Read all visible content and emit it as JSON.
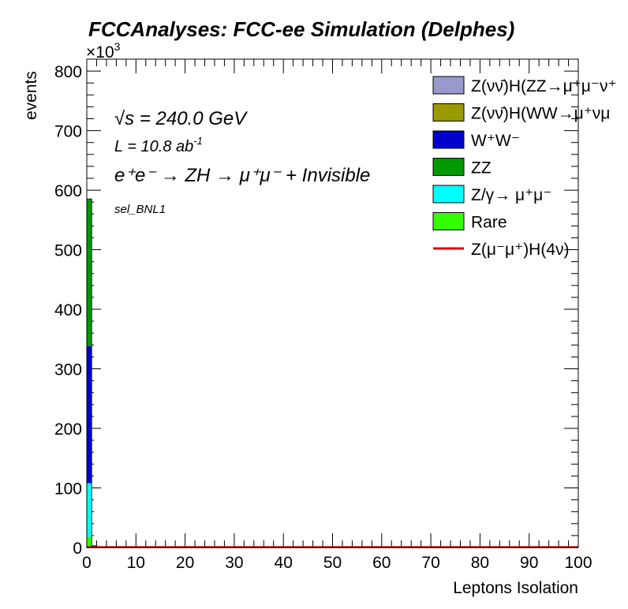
{
  "chart_data": {
    "type": "bar",
    "title": "FCCAnalyses: FCC-ee Simulation (Delphes)",
    "xlabel": "Leptons Isolation",
    "ylabel": "events",
    "y_multiplier": "×10",
    "y_multiplier_exp": "3",
    "xlim": [
      0,
      100
    ],
    "ylim": [
      0,
      820
    ],
    "x_ticks": [
      0,
      10,
      20,
      30,
      40,
      50,
      60,
      70,
      80,
      90,
      100
    ],
    "x_tick_labels": [
      "0",
      "10",
      "20",
      "30",
      "40",
      "50",
      "60",
      "70",
      "80",
      "90",
      "100"
    ],
    "y_ticks": [
      0,
      100,
      200,
      300,
      400,
      500,
      600,
      700,
      800
    ],
    "y_tick_labels": [
      "0",
      "100",
      "200",
      "300",
      "400",
      "500",
      "600",
      "700",
      "800"
    ],
    "bin_edges": [
      0,
      1,
      2,
      3
    ],
    "stack": [
      {
        "name": "Rare",
        "color": "#33ff00",
        "values": [
          18,
          0.5,
          0
        ]
      },
      {
        "name": "Z/γ→ μ⁺μ⁻",
        "color": "#00ffff",
        "values": [
          90,
          1.5,
          0.3
        ]
      },
      {
        "name": "W⁺W⁻",
        "color": "#0000cc",
        "values": [
          230,
          0.5,
          0
        ]
      },
      {
        "name": "ZZ",
        "color": "#009900",
        "values": [
          247,
          0.5,
          0
        ]
      },
      {
        "name": "Z(νν̄)H(WW→μ⁺νμ⁻ν̄)",
        "color": "#999900",
        "values": [
          0.2,
          0,
          0
        ]
      },
      {
        "name": "Z(νν̄)H(ZZ→μ⁺μ⁻ν⁺ν̄)",
        "color": "#9999cc",
        "values": [
          0.1,
          0,
          0
        ]
      }
    ],
    "signal": {
      "name": "Z(μ⁻μ⁺)H(4ν)",
      "color": "#dd0000",
      "level": 0.5
    },
    "annotations": {
      "sqrt_s": "√s = 240.0 GeV",
      "lumi": "L = 10.8 ab",
      "lumi_exp": "-1",
      "process": "e⁺e⁻ → ZH → μ⁺μ⁻ + Invisible",
      "selection": "sel_BNL1"
    },
    "legend": [
      {
        "label": "Z(νν̄)H(ZZ→μ⁺μ⁻ν⁺",
        "color": "#9999cc",
        "kind": "box"
      },
      {
        "label": "Z(νν̄)H(WW→μ⁺νμ",
        "color": "#999900",
        "kind": "box"
      },
      {
        "label": "W⁺W⁻",
        "color": "#0000cc",
        "kind": "box"
      },
      {
        "label": "ZZ",
        "color": "#009900",
        "kind": "box"
      },
      {
        "label": "Z/γ→ μ⁺μ⁻",
        "color": "#00ffff",
        "kind": "box"
      },
      {
        "label": "Rare",
        "color": "#33ff00",
        "kind": "box"
      },
      {
        "label": "Z(μ⁻μ⁺)H(4ν)",
        "color": "#dd0000",
        "kind": "line"
      }
    ],
    "legend_position": "top-right",
    "grid": false
  }
}
